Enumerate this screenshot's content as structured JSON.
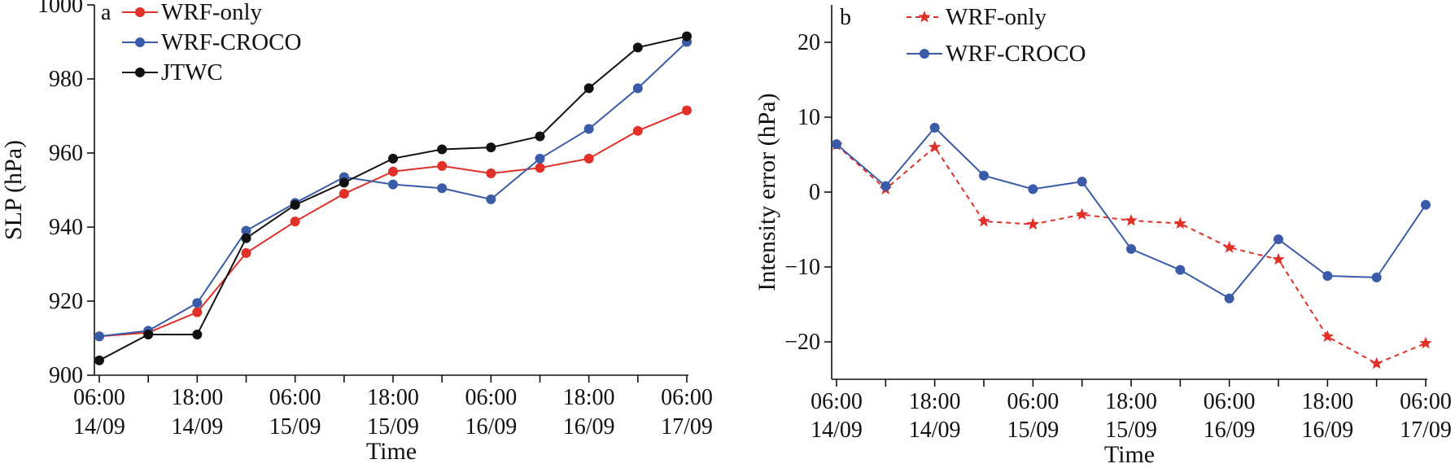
{
  "chart_data": [
    {
      "type": "line",
      "panel_label": "a",
      "xlabel": "Time",
      "ylabel": "SLP (hPa)",
      "ylim": [
        900,
        1000
      ],
      "y_ticks": [
        900,
        920,
        940,
        960,
        980,
        1000
      ],
      "x_ticks": [
        {
          "time": "06:00",
          "date": "14/09"
        },
        {
          "time": "18:00",
          "date": "14/09"
        },
        {
          "time": "06:00",
          "date": "15/09"
        },
        {
          "time": "18:00",
          "date": "15/09"
        },
        {
          "time": "06:00",
          "date": "16/09"
        },
        {
          "time": "18:00",
          "date": "16/09"
        },
        {
          "time": "06:00",
          "date": "17/09"
        }
      ],
      "x": [
        "14/09 06:00",
        "14/09 12:00",
        "14/09 18:00",
        "15/09 00:00",
        "15/09 06:00",
        "15/09 12:00",
        "15/09 18:00",
        "16/09 00:00",
        "16/09 06:00",
        "16/09 12:00",
        "16/09 18:00",
        "17/09 00:00",
        "17/09 06:00"
      ],
      "legend_position": "top-left",
      "series": [
        {
          "name": "WRF-only",
          "color": "#e03027",
          "marker": "circle",
          "line": "solid",
          "values": [
            910.5,
            911.5,
            917,
            933,
            941.5,
            949,
            955,
            956.5,
            954.5,
            956,
            958.5,
            966,
            971.5
          ]
        },
        {
          "name": "WRF-CROCO",
          "color": "#3a5ca8",
          "marker": "circle",
          "line": "solid",
          "values": [
            910.5,
            912,
            919.5,
            939,
            946.5,
            953.5,
            951.5,
            950.5,
            947.5,
            958.5,
            966.5,
            977.5,
            990
          ]
        },
        {
          "name": "JTWC",
          "color": "#111111",
          "marker": "circle",
          "line": "solid",
          "values": [
            904,
            911,
            911,
            937,
            946,
            952,
            958.5,
            961,
            961.5,
            964.5,
            977.5,
            988.5,
            991.5
          ]
        }
      ]
    },
    {
      "type": "line",
      "panel_label": "b",
      "xlabel": "Time",
      "ylabel": "Intensity error (hPa)",
      "ylim": [
        -25,
        25
      ],
      "y_ticks": [
        -20,
        -10,
        0,
        10,
        20
      ],
      "x_ticks": [
        {
          "time": "06:00",
          "date": "14/09"
        },
        {
          "time": "18:00",
          "date": "14/09"
        },
        {
          "time": "06:00",
          "date": "15/09"
        },
        {
          "time": "18:00",
          "date": "15/09"
        },
        {
          "time": "06:00",
          "date": "16/09"
        },
        {
          "time": "18:00",
          "date": "16/09"
        },
        {
          "time": "06:00",
          "date": "17/09"
        }
      ],
      "x": [
        "14/09 06:00",
        "14/09 12:00",
        "14/09 18:00",
        "15/09 00:00",
        "15/09 06:00",
        "15/09 12:00",
        "15/09 18:00",
        "16/09 00:00",
        "16/09 06:00",
        "16/09 12:00",
        "16/09 18:00",
        "17/09 00:00",
        "17/09 06:00"
      ],
      "legend_position": "top-left",
      "series": [
        {
          "name": "WRF-only",
          "color": "#e03027",
          "marker": "star",
          "line": "dashed",
          "values": [
            6.3,
            0.4,
            6.0,
            -3.9,
            -4.3,
            -3.0,
            -3.8,
            -4.2,
            -7.4,
            -9.0,
            -19.3,
            -22.9,
            -20.2
          ]
        },
        {
          "name": "WRF-CROCO",
          "color": "#3a5ca8",
          "marker": "circle",
          "line": "solid",
          "values": [
            6.4,
            0.8,
            8.6,
            2.2,
            0.4,
            1.4,
            -7.6,
            -10.4,
            -14.2,
            -6.3,
            -11.2,
            -11.4,
            -1.7
          ]
        }
      ]
    }
  ]
}
